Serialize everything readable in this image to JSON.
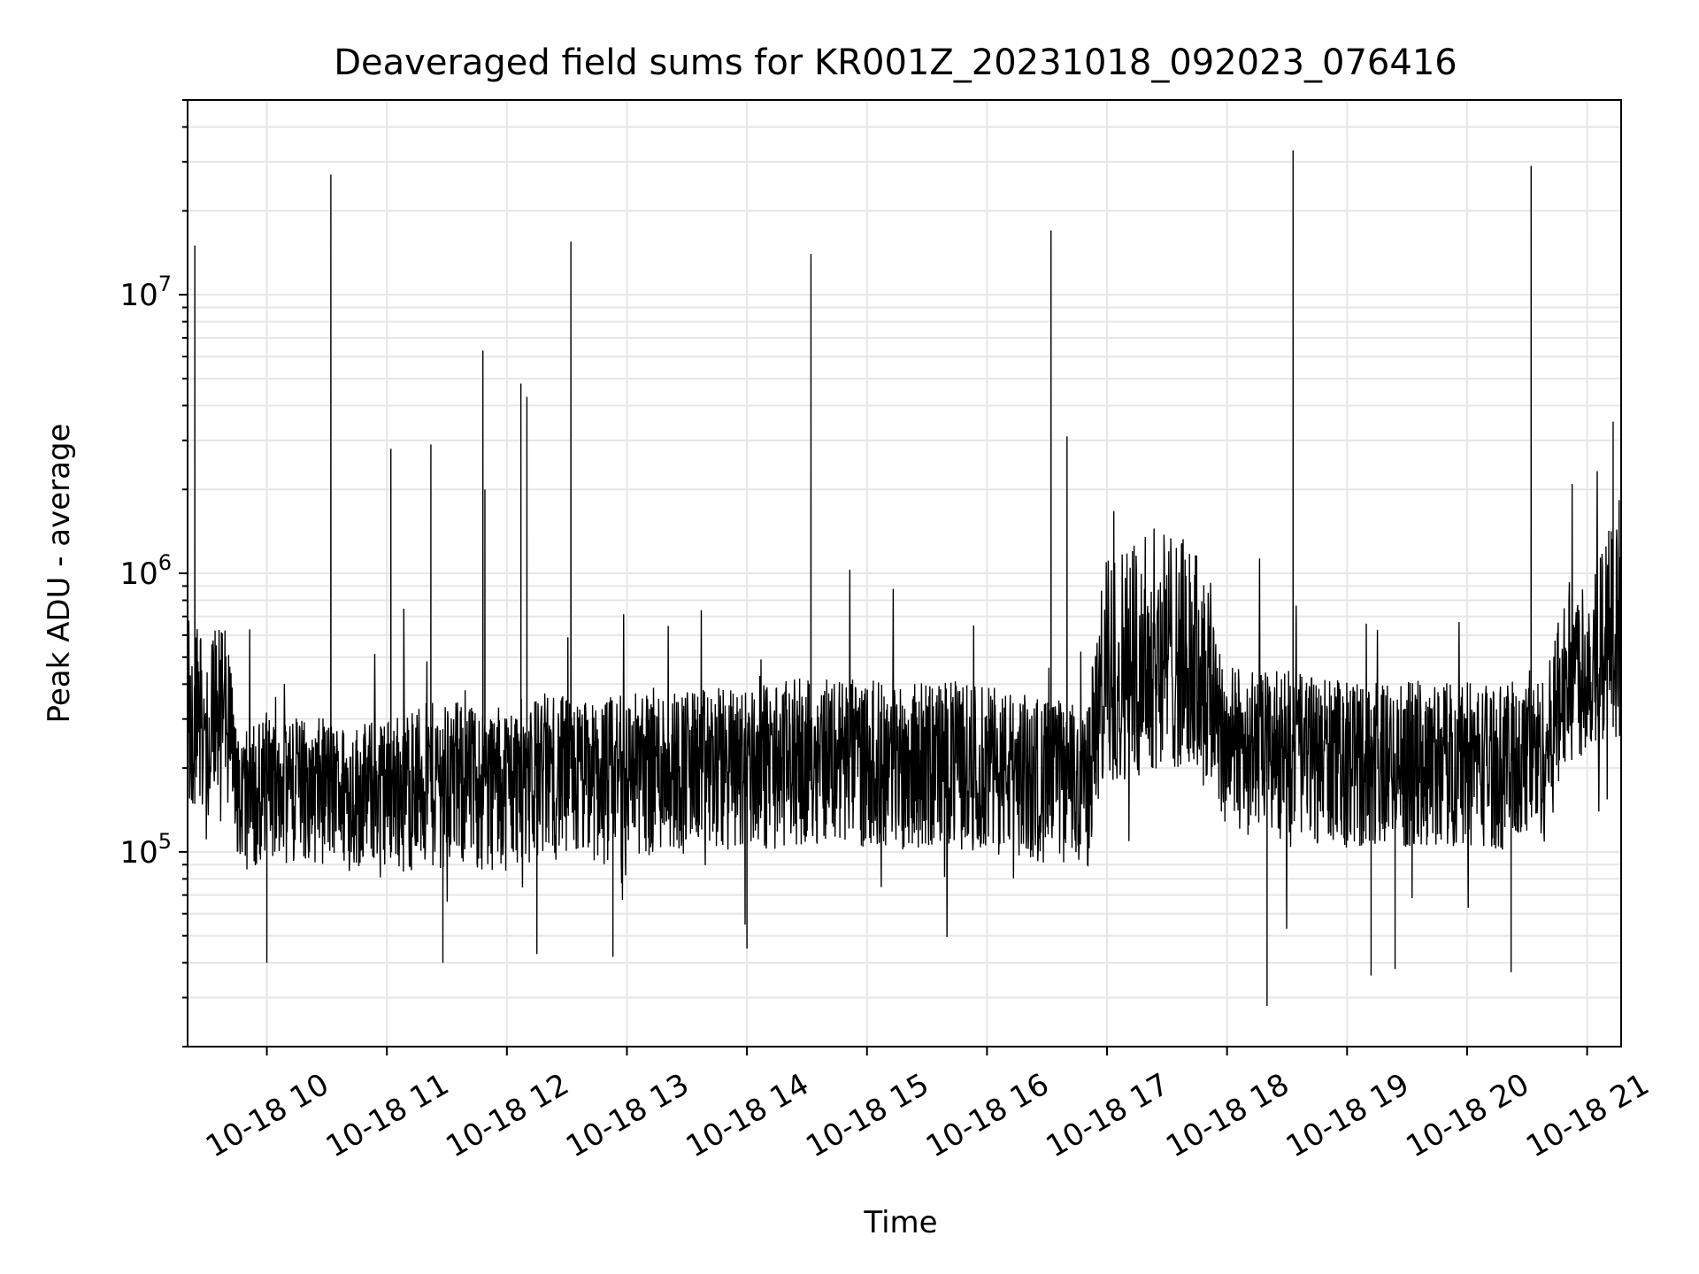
{
  "chart_data": {
    "type": "line",
    "title": "Deaveraged field sums for KR001Z_20231018_092023_076416",
    "xlabel": "Time",
    "ylabel": "Peak ADU - average",
    "yscale": "log",
    "grid": true,
    "ylim": [
      20000,
      50000000
    ],
    "xlim": [
      "2023-10-18 09:20:23",
      "2023-10-18 21:17:00"
    ],
    "x_ticks": [
      {
        "value": "2023-10-18 10:00",
        "label": "10-18 10"
      },
      {
        "value": "2023-10-18 11:00",
        "label": "10-18 11"
      },
      {
        "value": "2023-10-18 12:00",
        "label": "10-18 12"
      },
      {
        "value": "2023-10-18 13:00",
        "label": "10-18 13"
      },
      {
        "value": "2023-10-18 14:00",
        "label": "10-18 14"
      },
      {
        "value": "2023-10-18 15:00",
        "label": "10-18 15"
      },
      {
        "value": "2023-10-18 16:00",
        "label": "10-18 16"
      },
      {
        "value": "2023-10-18 17:00",
        "label": "10-18 17"
      },
      {
        "value": "2023-10-18 18:00",
        "label": "10-18 18"
      },
      {
        "value": "2023-10-18 19:00",
        "label": "10-18 19"
      },
      {
        "value": "2023-10-18 20:00",
        "label": "10-18 20"
      },
      {
        "value": "2023-10-18 21:00",
        "label": "10-18 21"
      }
    ],
    "y_ticks": [
      {
        "value": 100000,
        "base": "10",
        "exp": "5"
      },
      {
        "value": 1000000,
        "base": "10",
        "exp": "6"
      },
      {
        "value": 10000000,
        "base": "10",
        "exp": "7"
      }
    ],
    "line_color": "#000000",
    "grid_color": "#e6e6e6",
    "series": [
      {
        "x": [
          "2023-10-18 09:20",
          "2023-10-18 09:25",
          "2023-10-18 09:30",
          "2023-10-18 09:35",
          "2023-10-18 09:40",
          "2023-10-18 09:45",
          "2023-10-18 09:50",
          "2023-10-18 09:55",
          "2023-10-18 10:00",
          "2023-10-18 10:10",
          "2023-10-18 10:20",
          "2023-10-18 10:30",
          "2023-10-18 10:40",
          "2023-10-18 10:50",
          "2023-10-18 11:00",
          "2023-10-18 11:10",
          "2023-10-18 11:20",
          "2023-10-18 11:30",
          "2023-10-18 11:40",
          "2023-10-18 11:50",
          "2023-10-18 12:00",
          "2023-10-18 12:10",
          "2023-10-18 12:20",
          "2023-10-18 12:30",
          "2023-10-18 12:40",
          "2023-10-18 12:50",
          "2023-10-18 13:00",
          "2023-10-18 13:20",
          "2023-10-18 13:40",
          "2023-10-18 14:00",
          "2023-10-18 14:20",
          "2023-10-18 14:40",
          "2023-10-18 15:00",
          "2023-10-18 15:20",
          "2023-10-18 15:40",
          "2023-10-18 16:00",
          "2023-10-18 16:20",
          "2023-10-18 16:40",
          "2023-10-18 16:50",
          "2023-10-18 17:00",
          "2023-10-18 17:10",
          "2023-10-18 17:20",
          "2023-10-18 17:30",
          "2023-10-18 17:40",
          "2023-10-18 17:50",
          "2023-10-18 18:00",
          "2023-10-18 18:20",
          "2023-10-18 18:40",
          "2023-10-18 19:00",
          "2023-10-18 19:20",
          "2023-10-18 19:40",
          "2023-10-18 20:00",
          "2023-10-18 20:20",
          "2023-10-18 20:40",
          "2023-10-18 20:50",
          "2023-10-18 21:00",
          "2023-10-18 21:10",
          "2023-10-18 21:17"
        ],
        "baseline": [
          350000,
          300000,
          250000,
          350000,
          300000,
          160000,
          170000,
          180000,
          190000,
          180000,
          175000,
          180000,
          170000,
          175000,
          180000,
          185000,
          190000,
          195000,
          190000,
          185000,
          190000,
          200000,
          210000,
          200000,
          195000,
          200000,
          210000,
          220000,
          215000,
          220000,
          230000,
          240000,
          230000,
          225000,
          230000,
          220000,
          205000,
          195000,
          180000,
          420000,
          450000,
          480000,
          500000,
          470000,
          420000,
          260000,
          250000,
          240000,
          230000,
          225000,
          230000,
          230000,
          225000,
          240000,
          420000,
          450000,
          500000,
          520000
        ],
        "spread_low": [
          0.45,
          0.45,
          0.5,
          0.5,
          0.5,
          0.55,
          0.5,
          0.5,
          0.5,
          0.5,
          0.5,
          0.5,
          0.5,
          0.5,
          0.5,
          0.45,
          0.45,
          0.45,
          0.45,
          0.45,
          0.45,
          0.45,
          0.45,
          0.45,
          0.45,
          0.45,
          0.45,
          0.45,
          0.45,
          0.45,
          0.45,
          0.45,
          0.45,
          0.45,
          0.45,
          0.45,
          0.45,
          0.45,
          0.45,
          0.4,
          0.4,
          0.4,
          0.4,
          0.4,
          0.4,
          0.45,
          0.45,
          0.45,
          0.45,
          0.45,
          0.45,
          0.45,
          0.45,
          0.45,
          0.5,
          0.5,
          0.5,
          0.5
        ],
        "spread_high": [
          2.0,
          2.2,
          2.0,
          2.2,
          2.0,
          1.6,
          1.6,
          1.6,
          1.7,
          1.7,
          1.7,
          1.7,
          1.7,
          1.7,
          1.7,
          1.8,
          1.8,
          1.8,
          1.8,
          1.8,
          1.8,
          1.8,
          1.8,
          1.8,
          1.8,
          1.8,
          1.8,
          1.8,
          1.8,
          1.8,
          1.8,
          1.8,
          1.8,
          1.8,
          1.8,
          1.8,
          1.8,
          1.8,
          1.8,
          2.8,
          3.0,
          3.0,
          3.0,
          2.8,
          2.6,
          1.8,
          1.8,
          1.8,
          1.8,
          1.8,
          1.8,
          1.8,
          1.8,
          1.8,
          2.2,
          2.4,
          3.0,
          3.0
        ],
        "spikes": [
          {
            "t": "2023-10-18 09:24",
            "v": 15000000
          },
          {
            "t": "2023-10-18 10:32",
            "v": 27000000
          },
          {
            "t": "2023-10-18 11:02",
            "v": 2800000
          },
          {
            "t": "2023-10-18 11:22",
            "v": 2900000
          },
          {
            "t": "2023-10-18 11:48",
            "v": 6300000
          },
          {
            "t": "2023-10-18 11:49",
            "v": 2000000
          },
          {
            "t": "2023-10-18 12:07",
            "v": 4800000
          },
          {
            "t": "2023-10-18 12:10",
            "v": 4300000
          },
          {
            "t": "2023-10-18 12:32",
            "v": 15500000
          },
          {
            "t": "2023-10-18 14:32",
            "v": 14000000
          },
          {
            "t": "2023-10-18 16:32",
            "v": 17000000
          },
          {
            "t": "2023-10-18 16:40",
            "v": 3100000
          },
          {
            "t": "2023-10-18 18:33",
            "v": 33000000
          },
          {
            "t": "2023-10-18 20:32",
            "v": 29000000
          },
          {
            "t": "2023-10-18 21:13",
            "v": 3500000
          }
        ],
        "dips": [
          {
            "t": "2023-10-18 10:00",
            "v": 40000
          },
          {
            "t": "2023-10-18 11:28",
            "v": 40000
          },
          {
            "t": "2023-10-18 12:15",
            "v": 43000
          },
          {
            "t": "2023-10-18 12:53",
            "v": 42000
          },
          {
            "t": "2023-10-18 14:00",
            "v": 45000
          },
          {
            "t": "2023-10-18 18:20",
            "v": 28000
          },
          {
            "t": "2023-10-18 19:12",
            "v": 36000
          },
          {
            "t": "2023-10-18 19:24",
            "v": 38000
          },
          {
            "t": "2023-10-18 20:22",
            "v": 37000
          }
        ]
      }
    ]
  }
}
